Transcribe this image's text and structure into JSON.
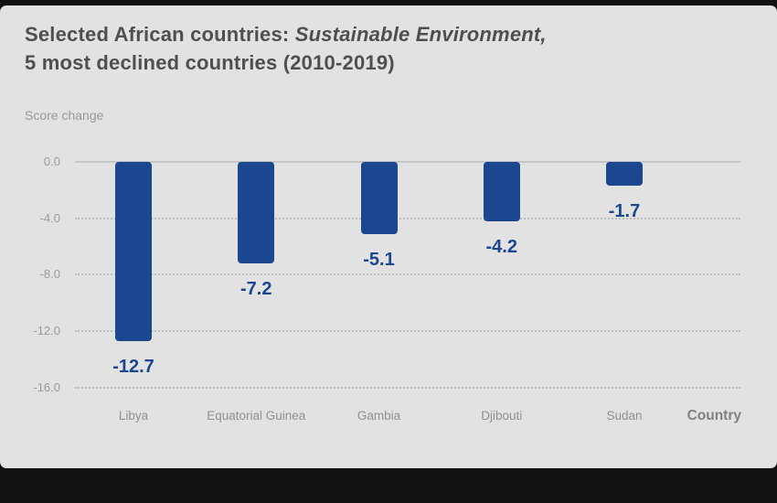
{
  "header": {
    "title_prefix": "Selected African countries: ",
    "title_italic": "Sustainable Environment,",
    "title_line2": "5 most declined countries (2010-2019)"
  },
  "axis": {
    "ylabel": "Score change",
    "xlabel": "Country"
  },
  "chart_data": {
    "type": "bar",
    "title": "Selected African countries: Sustainable Environment, 5 most declined countries (2010-2019)",
    "ylabel": "Score change",
    "xlabel": "Country",
    "categories": [
      "Libya",
      "Equatorial Guinea",
      "Gambia",
      "Djibouti",
      "Sudan"
    ],
    "values": [
      -12.7,
      -7.2,
      -5.1,
      -4.2,
      -1.7
    ],
    "value_labels": [
      "-12.7",
      "-7.2",
      "-5.1",
      "-4.2",
      "-1.7"
    ],
    "ylim": [
      -16,
      0
    ],
    "yticks": [
      0,
      -4,
      -8,
      -12,
      -16
    ],
    "ytick_labels": [
      "0.0",
      "-4.0",
      "-8.0",
      "-12.0",
      "-16.0"
    ],
    "grid": "horizontal dotted, solid zero line",
    "legend": "none",
    "bar_color": "#1b4791",
    "background_color": "#e3e2e2"
  }
}
